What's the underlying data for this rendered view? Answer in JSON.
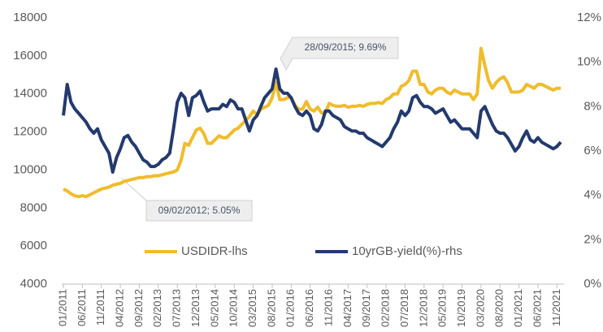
{
  "chart_data": {
    "type": "line",
    "categories": [
      "01/2011",
      null,
      null,
      null,
      null,
      "06/2011",
      null,
      null,
      null,
      null,
      "11/2011",
      null,
      null,
      null,
      null,
      "04/2012",
      null,
      null,
      null,
      null,
      "09/2012",
      null,
      null,
      null,
      null,
      "02/2013",
      null,
      null,
      null,
      null,
      "07/2013",
      null,
      null,
      null,
      null,
      "12/2013",
      null,
      null,
      null,
      null,
      "05/2014",
      null,
      null,
      null,
      null,
      "10/2014",
      null,
      null,
      null,
      null,
      "03/2015",
      null,
      null,
      null,
      null,
      "08/2015",
      null,
      null,
      null,
      null,
      "01/2016",
      null,
      null,
      null,
      null,
      "06/2016",
      null,
      null,
      null,
      null,
      "11/2016",
      null,
      null,
      null,
      null,
      "04/2017",
      null,
      null,
      null,
      null,
      "09/2017",
      null,
      null,
      null,
      null,
      "02/2018",
      null,
      null,
      null,
      null,
      "07/2018",
      null,
      null,
      null,
      null,
      "12/2018",
      null,
      null,
      null,
      null,
      "05/2019",
      null,
      null,
      null,
      null,
      "10/2019",
      null,
      null,
      null,
      null,
      "03/2020",
      null,
      null,
      null,
      null,
      "08/2020",
      null,
      null,
      null,
      null,
      "01/2021",
      null,
      null,
      null,
      null,
      "06/2021",
      null,
      null,
      null,
      null,
      "11/2021",
      null
    ],
    "series": [
      {
        "name": "USDIDR-lhs",
        "color": "#f0bc2c",
        "values": [
          9000,
          8900,
          8750,
          8650,
          8600,
          8650,
          8600,
          8700,
          8800,
          8900,
          9000,
          9050,
          9100,
          9200,
          9250,
          9300,
          9400,
          9450,
          9500,
          9550,
          9600,
          9600,
          9650,
          9650,
          9700,
          9700,
          9750,
          9800,
          9850,
          9900,
          10000,
          10500,
          11400,
          11300,
          11700,
          12100,
          12200,
          11900,
          11400,
          11400,
          11600,
          11800,
          11700,
          11700,
          11900,
          12100,
          12200,
          12400,
          12600,
          12800,
          13100,
          12900,
          13200,
          13300,
          13400,
          13800,
          14600,
          13700,
          13700,
          13800,
          13800,
          13400,
          13200,
          13200,
          13600,
          13200,
          13100,
          13300,
          13000,
          13000,
          13500,
          13400,
          13350,
          13350,
          13400,
          13300,
          13350,
          13350,
          13400,
          13350,
          13450,
          13500,
          13500,
          13550,
          13500,
          13700,
          13800,
          14000,
          14000,
          14400,
          14500,
          14700,
          15200,
          15200,
          14500,
          14500,
          14100,
          14000,
          14200,
          14300,
          14300,
          14100,
          14000,
          14200,
          14100,
          14000,
          14000,
          14000,
          13700,
          14000,
          16400,
          15500,
          14700,
          14300,
          14600,
          14800,
          14900,
          14600,
          14100,
          14100,
          14100,
          14200,
          14500,
          14400,
          14300,
          14500,
          14500,
          14400,
          14300,
          14200,
          14300,
          14300
        ]
      },
      {
        "name": "10yrGB-yield(%)-rhs",
        "color": "#243a6e",
        "axis": "y2",
        "values": [
          7.6,
          9.0,
          8.2,
          7.9,
          7.7,
          7.5,
          7.3,
          7.0,
          6.8,
          7.0,
          6.5,
          6.2,
          5.9,
          5.05,
          5.7,
          6.1,
          6.6,
          6.7,
          6.4,
          6.2,
          5.9,
          5.6,
          5.5,
          5.3,
          5.3,
          5.4,
          5.6,
          5.7,
          5.9,
          7.0,
          8.2,
          8.6,
          8.4,
          7.6,
          8.4,
          8.5,
          8.7,
          8.2,
          7.8,
          7.9,
          7.9,
          7.9,
          8.1,
          8.0,
          8.3,
          8.2,
          7.9,
          7.9,
          7.4,
          6.9,
          7.4,
          7.6,
          8.0,
          8.4,
          8.6,
          8.8,
          9.69,
          8.8,
          8.6,
          8.6,
          8.4,
          8.0,
          7.7,
          7.6,
          7.8,
          7.6,
          7.0,
          6.9,
          7.2,
          7.8,
          7.8,
          7.6,
          7.5,
          7.4,
          7.1,
          7.0,
          6.9,
          6.9,
          6.8,
          6.8,
          6.6,
          6.5,
          6.4,
          6.3,
          6.2,
          6.4,
          6.6,
          7.0,
          7.3,
          7.8,
          7.6,
          7.8,
          8.4,
          8.5,
          8.2,
          8.0,
          8.0,
          7.9,
          7.7,
          7.8,
          7.9,
          7.6,
          7.3,
          7.4,
          7.2,
          7.0,
          7.0,
          7.0,
          6.8,
          6.6,
          7.8,
          8.0,
          7.6,
          7.2,
          6.9,
          6.8,
          6.8,
          6.6,
          6.3,
          6.0,
          6.2,
          6.6,
          6.9,
          6.5,
          6.4,
          6.6,
          6.4,
          6.3,
          6.2,
          6.1,
          6.2,
          6.4
        ]
      }
    ],
    "ylim": [
      4000,
      18000
    ],
    "yticks": [
      4000,
      6000,
      8000,
      10000,
      12000,
      14000,
      16000,
      18000
    ],
    "y2lim": [
      0,
      12
    ],
    "y2ticks": [
      {
        "value": 0,
        "label": "0%"
      },
      {
        "value": 2,
        "label": "2%"
      },
      {
        "value": 4,
        "label": "4%"
      },
      {
        "value": 6,
        "label": "6%"
      },
      {
        "value": 8,
        "label": "8%"
      },
      {
        "value": 10,
        "label": "10%"
      },
      {
        "value": 12,
        "label": "12%"
      }
    ],
    "annotations": [
      "28/09/2015;  9.69%",
      "09/02/2012;  5.05%"
    ],
    "grid": false,
    "legend": "bottom"
  }
}
